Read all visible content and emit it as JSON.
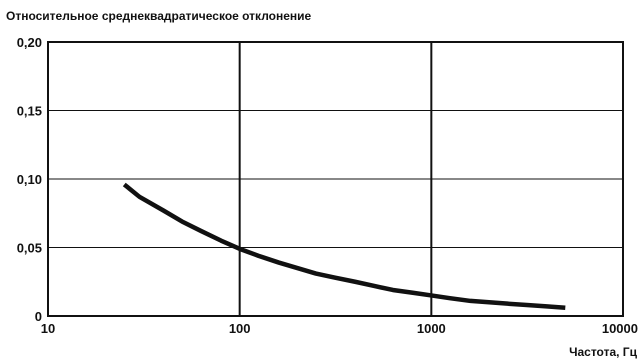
{
  "chart_data": {
    "type": "line",
    "title": "",
    "ylabel": "Относительное среднеквадратическое отклонение",
    "xlabel": "Частота, Гц",
    "x_scale": "log",
    "xlim": [
      10,
      10000
    ],
    "ylim": [
      0,
      0.2
    ],
    "x_ticks": [
      10,
      100,
      1000,
      10000
    ],
    "x_tick_labels": [
      "10",
      "100",
      "1000",
      "10000"
    ],
    "y_ticks": [
      0,
      0.05,
      0.1,
      0.15,
      0.2
    ],
    "y_tick_labels": [
      "0",
      "0,05",
      "0,10",
      "0,15",
      "0,20"
    ],
    "grid": true,
    "series": [
      {
        "points": [
          {
            "x": 25,
            "y": 0.096
          },
          {
            "x": 30,
            "y": 0.087
          },
          {
            "x": 40,
            "y": 0.077
          },
          {
            "x": 50,
            "y": 0.069
          },
          {
            "x": 63,
            "y": 0.062
          },
          {
            "x": 80,
            "y": 0.055
          },
          {
            "x": 100,
            "y": 0.049
          },
          {
            "x": 125,
            "y": 0.044
          },
          {
            "x": 160,
            "y": 0.039
          },
          {
            "x": 200,
            "y": 0.035
          },
          {
            "x": 250,
            "y": 0.031
          },
          {
            "x": 315,
            "y": 0.028
          },
          {
            "x": 400,
            "y": 0.025
          },
          {
            "x": 500,
            "y": 0.022
          },
          {
            "x": 630,
            "y": 0.019
          },
          {
            "x": 800,
            "y": 0.017
          },
          {
            "x": 1000,
            "y": 0.015
          },
          {
            "x": 1250,
            "y": 0.013
          },
          {
            "x": 1600,
            "y": 0.011
          },
          {
            "x": 2000,
            "y": 0.01
          },
          {
            "x": 2500,
            "y": 0.009
          },
          {
            "x": 3150,
            "y": 0.008
          },
          {
            "x": 4000,
            "y": 0.007
          },
          {
            "x": 5000,
            "y": 0.006
          }
        ]
      }
    ]
  },
  "colors": {
    "line": "#111111",
    "grid": "#111111",
    "background": "#ffffff"
  }
}
